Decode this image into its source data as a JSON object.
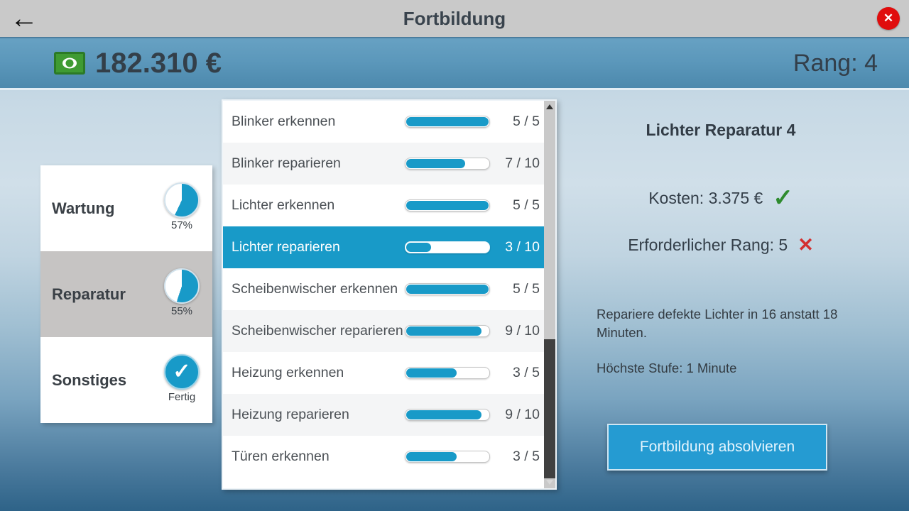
{
  "header": {
    "title": "Fortbildung"
  },
  "status_bar": {
    "money": "182.310 €",
    "rank": "Rang: 4"
  },
  "categories": [
    {
      "label": "Wartung",
      "percent": 57,
      "caption": "57%",
      "state": "default"
    },
    {
      "label": "Reparatur",
      "percent": 55,
      "caption": "55%",
      "state": "selected"
    },
    {
      "label": "Sonstiges",
      "percent": 100,
      "caption": "Fertig",
      "state": "complete"
    }
  ],
  "skills": {
    "items": [
      {
        "label": "Blinker erkennen",
        "value": 5,
        "max": 5,
        "fraction": "5 / 5",
        "selected": false
      },
      {
        "label": "Blinker reparieren",
        "value": 7,
        "max": 10,
        "fraction": "7 / 10",
        "selected": false
      },
      {
        "label": "Lichter erkennen",
        "value": 5,
        "max": 5,
        "fraction": "5 / 5",
        "selected": false
      },
      {
        "label": "Lichter reparieren",
        "value": 3,
        "max": 10,
        "fraction": "3 / 10",
        "selected": true
      },
      {
        "label": "Scheibenwischer erkennen",
        "value": 5,
        "max": 5,
        "fraction": "5 / 5",
        "selected": false
      },
      {
        "label": "Scheibenwischer reparieren",
        "value": 9,
        "max": 10,
        "fraction": "9 / 10",
        "selected": false
      },
      {
        "label": "Heizung erkennen",
        "value": 3,
        "max": 5,
        "fraction": "3 / 5",
        "selected": false
      },
      {
        "label": "Heizung reparieren",
        "value": 9,
        "max": 10,
        "fraction": "9 / 10",
        "selected": false
      },
      {
        "label": "Türen erkennen",
        "value": 3,
        "max": 5,
        "fraction": "3 / 5",
        "selected": false
      }
    ]
  },
  "details": {
    "title": "Lichter Reparatur 4",
    "cost": {
      "label": "Kosten: 3.375 €",
      "status": "ok"
    },
    "rank_requirement": {
      "label": "Erforderlicher Rang: 5",
      "status": "not-met"
    },
    "description": "Repariere defekte Lichter in 16 anstatt 18 Minuten.",
    "max_level": "Höchste Stufe: 1 Minute",
    "button": "Fortbildung absolvieren"
  },
  "icons": {
    "back_glyph": "←",
    "close_glyph": "✕",
    "check_glyph": "✓",
    "cross_glyph": "✕"
  },
  "colors": {
    "accent": "#189ac8",
    "button": "#259bd2",
    "success": "#2e8b2e",
    "danger": "#d32f2f",
    "close_red": "#e00d0d",
    "money_green": "#3f9b33"
  }
}
